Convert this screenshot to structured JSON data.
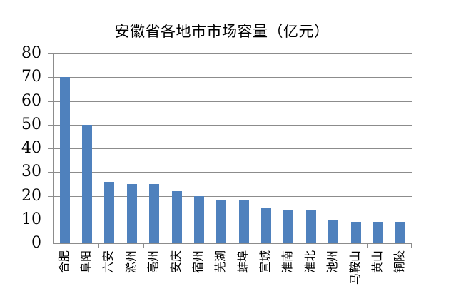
{
  "chart_data": {
    "type": "bar",
    "title": "安徽省各地市市场容量（亿元）",
    "categories": [
      "合肥",
      "阜阳",
      "六安",
      "滁州",
      "亳州",
      "安庆",
      "宿州",
      "芜湖",
      "蚌埠",
      "宣城",
      "淮南",
      "淮北",
      "池州",
      "马鞍山",
      "黄山",
      "铜陵"
    ],
    "values": [
      70,
      50,
      26,
      25,
      25,
      22,
      20,
      18,
      18,
      15,
      14,
      14,
      10,
      9,
      9,
      9
    ],
    "xlabel": "",
    "ylabel": "",
    "ylim": [
      0,
      80
    ],
    "yticks": [
      0,
      10,
      20,
      30,
      40,
      50,
      60,
      70,
      80
    ],
    "grid": "horizontal",
    "legend": "none",
    "bar_color": "#4F81BD",
    "axis_color": "#8C8C8C",
    "text_color": "#000000",
    "background_color": "#FFFFFF"
  }
}
